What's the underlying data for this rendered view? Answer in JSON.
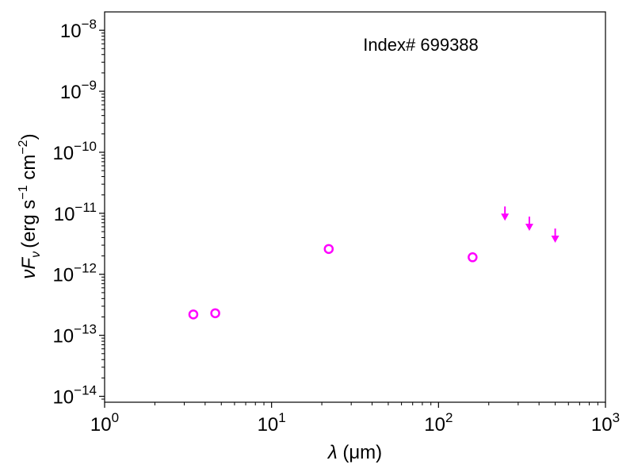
{
  "chart_data": {
    "type": "scatter",
    "annotation": "Index# 699388",
    "xlabel_symbol": "λ",
    "xlabel_unit": "(μm)",
    "ylabel_symbol": "νF",
    "ylabel_subscript": "ν",
    "ylabel_unit_parts": [
      "(erg s",
      "−1",
      " cm",
      "−2",
      ")"
    ],
    "xscale": "log",
    "yscale": "log",
    "xlim": [
      1,
      1000
    ],
    "ylim": [
      8e-15,
      2e-08
    ],
    "x_ticks": [
      {
        "value": 1,
        "base": "10",
        "exp": "0"
      },
      {
        "value": 10,
        "base": "10",
        "exp": "1"
      },
      {
        "value": 100,
        "base": "10",
        "exp": "2"
      },
      {
        "value": 1000,
        "base": "10",
        "exp": "3"
      }
    ],
    "y_ticks": [
      {
        "value": 1e-14,
        "base": "10",
        "exp": "−14"
      },
      {
        "value": 1e-13,
        "base": "10",
        "exp": "−13"
      },
      {
        "value": 1e-12,
        "base": "10",
        "exp": "−12"
      },
      {
        "value": 1e-11,
        "base": "10",
        "exp": "−11"
      },
      {
        "value": 1e-10,
        "base": "10",
        "exp": "−10"
      },
      {
        "value": 1e-09,
        "base": "10",
        "exp": "−9"
      },
      {
        "value": 1e-08,
        "base": "10",
        "exp": "−8"
      }
    ],
    "series": [
      {
        "marker": "open-circle",
        "color": "#ff00ff",
        "points": [
          {
            "x": 3.4,
            "y": 2.2e-13
          },
          {
            "x": 4.6,
            "y": 2.3e-13
          },
          {
            "x": 22,
            "y": 2.6e-12
          },
          {
            "x": 160,
            "y": 1.9e-12
          }
        ]
      },
      {
        "marker": "upper-limit-arrow",
        "color": "#ff00ff",
        "points": [
          {
            "x": 250,
            "y": 8.5e-12
          },
          {
            "x": 350,
            "y": 5.8e-12
          },
          {
            "x": 500,
            "y": 3.7e-12
          }
        ]
      }
    ],
    "grid": false,
    "legend": false
  }
}
